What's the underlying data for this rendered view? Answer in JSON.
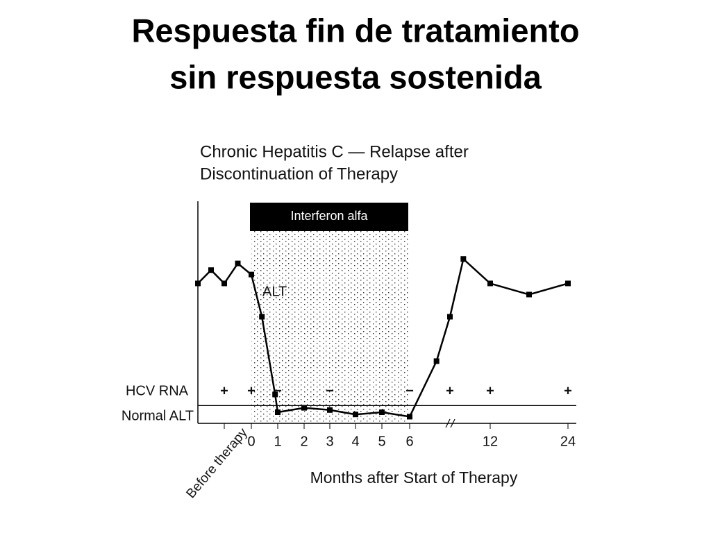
{
  "title": [
    "Respuesta fin de tratamiento",
    "sin respuesta sostenida"
  ],
  "chart_data": {
    "type": "line",
    "title": [
      "Chronic Hepatitis C — Relapse after",
      "Discontinuation of Therapy"
    ],
    "xlabel": "Months after Start of Therapy",
    "xlim": [
      -2,
      24
    ],
    "xticks": [
      {
        "value": -1,
        "label": "Before therapy"
      },
      0,
      1,
      2,
      3,
      4,
      5,
      6,
      12,
      24
    ],
    "ylim": [
      0,
      100
    ],
    "series": [
      {
        "name": "ALT",
        "color": "#000000",
        "x": [
          -2,
          -1.5,
          -1,
          -0.5,
          0,
          0.4,
          0.9,
          1,
          2,
          3,
          4,
          5,
          6,
          8,
          9,
          10,
          12,
          18,
          24
        ],
        "values": [
          63,
          69,
          63,
          72,
          67,
          48,
          13,
          5,
          7,
          6,
          4,
          5,
          3,
          28,
          48,
          74,
          63,
          58,
          63
        ]
      }
    ],
    "normal_alt": {
      "label": "Normal ALT",
      "value": 8
    },
    "hcv_rna": {
      "label": "HCV RNA",
      "x": [
        -1,
        0,
        1,
        3,
        6,
        9,
        12,
        24
      ],
      "labels": [
        "+",
        "+",
        "−",
        "−",
        "−",
        "+",
        "+",
        "+"
      ]
    },
    "therapy": {
      "label": "Interferon alfa",
      "start": 0,
      "end": 6
    }
  }
}
